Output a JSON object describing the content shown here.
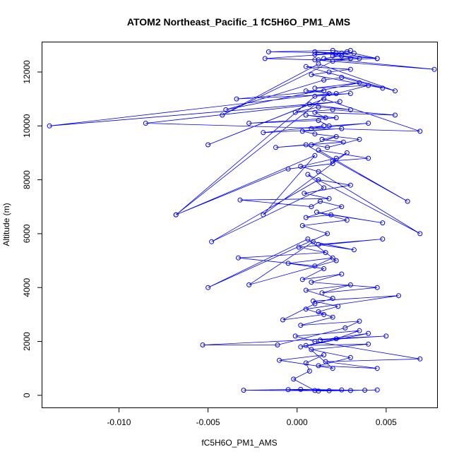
{
  "chart_data": {
    "type": "scatter",
    "title": "ATOM2 Northeast_Pacific_1 fC5H6O_PM1_AMS",
    "xlabel": "fC5H6O_PM1_AMS",
    "ylabel": "Altitude (m)",
    "xlim": [
      -0.0143,
      0.0079
    ],
    "ylim": [
      -450,
      13100
    ],
    "x_ticks": [
      {
        "value": -0.01,
        "label": "-0.010"
      },
      {
        "value": -0.005,
        "label": "-0.005"
      },
      {
        "value": 0.0,
        "label": "0.000"
      },
      {
        "value": 0.005,
        "label": "0.005"
      }
    ],
    "y_ticks": [
      {
        "value": 0,
        "label": "0"
      },
      {
        "value": 2000,
        "label": "2000"
      },
      {
        "value": 4000,
        "label": "4000"
      },
      {
        "value": 6000,
        "label": "6000"
      },
      {
        "value": 8000,
        "label": "8000"
      },
      {
        "value": 10000,
        "label": "10000"
      },
      {
        "value": 12000,
        "label": "12000"
      }
    ],
    "series_color": "#0000ff",
    "marker": "open-circle",
    "connected": true,
    "grid": false,
    "legend": "none",
    "series": [
      {
        "x": [
          0.0045,
          0.003,
          0.0012,
          -0.0005,
          0.0038,
          0.0018,
          -0.003,
          0.0002,
          0.0025,
          0.001,
          -0.0002,
          0.0007,
          0.0005,
          0.0015,
          -0.001,
          0.002,
          0.0005,
          0.004,
          0.0008,
          0.003,
          0.0012,
          0.0045,
          0.0016,
          0.0069,
          0.001,
          -0.0001,
          0.0035,
          0.0022,
          0.0002,
          0.004,
          0.0013,
          0.005,
          -0.0053,
          -0.0011,
          0.0027,
          0.0035,
          0.0002,
          0.002,
          0.0012,
          0.0023,
          0.0009,
          0.0057,
          0.0005,
          0.0015,
          -0.0008,
          0.001,
          0.002,
          0.0005,
          0.003,
          0.0014,
          0.0045,
          0.0008,
          0.0025,
          0.0003,
          0.0015,
          -0.0005,
          0.002,
          0.001,
          -0.0033,
          0.0016,
          0.0001,
          0.0048,
          0.0012,
          0.0032,
          0.0009,
          -0.0027,
          0.0022,
          0.0006,
          -0.005,
          0.0017,
          0.0003,
          0.0028,
          0.0011,
          0.0048,
          0.0019,
          0.0005,
          0.0025,
          0.0013,
          0.0008,
          -0.0032,
          0.0018,
          0.0004,
          0.003,
          0.0012,
          -0.0048,
          0.0015,
          0.0006,
          0.0069,
          0.0012,
          0.0002,
          0.0022,
          0.002,
          -0.0005,
          -0.0068,
          0.001,
          -0.0019,
          0.0028,
          0.002,
          0.004,
          0.0012,
          0.0062,
          0.0005,
          -0.0012,
          0.0026,
          0.0014,
          0.0022,
          0.0008,
          0.0017,
          0.0035,
          0.001,
          0.0003,
          0.0025,
          -0.0019,
          0.0015,
          0.0008,
          0.004,
          0.0018,
          0.0012,
          -0.0027,
          0.0022,
          0.0005,
          0.0016,
          0.001,
          0.0055,
          0.002,
          -0.0001,
          0.0012,
          0.003,
          0.0007,
          -0.005,
          0.0015,
          0.0069,
          -0.0085,
          0.0024,
          -0.0139,
          0.0018,
          -0.0068,
          0.001,
          0.003,
          -0.0034,
          0.0015,
          0.0005,
          0.0022,
          0.004,
          0.001,
          0.0035,
          -0.004,
          0.0015,
          0.0025,
          0.0048,
          0.0008,
          0.0018,
          0.003,
          0.0005,
          0.0055,
          0.0012,
          -0.0042,
          0.002,
          0.003,
          0.001,
          0.0077,
          0.0015,
          0.0025,
          0.0045,
          0.0022,
          0.001,
          0.0032,
          -0.0016,
          0.002,
          0.0028,
          0.0045,
          0.0012,
          -0.0018,
          0.0025,
          0.001,
          0.0035,
          0.002,
          0.003
        ],
        "y": [
          200,
          180,
          160,
          210,
          190,
          170,
          190,
          220,
          200,
          180,
          600,
          900,
          1200,
          1500,
          1300,
          1000,
          1850,
          1900,
          1700,
          1400,
          1100,
          1000,
          1250,
          1350,
          2000,
          2200,
          2400,
          2100,
          1800,
          2300,
          2050,
          2200,
          1870,
          1870,
          2500,
          2750,
          2600,
          2900,
          3100,
          3300,
          3500,
          3700,
          3200,
          3000,
          2800,
          3400,
          3600,
          3900,
          4100,
          3800,
          4000,
          4200,
          4500,
          4300,
          4700,
          4900,
          5100,
          4800,
          5100,
          5300,
          5500,
          5800,
          5600,
          5400,
          5700,
          4100,
          5000,
          5800,
          4000,
          6000,
          6300,
          6500,
          6800,
          6400,
          6700,
          6600,
          7000,
          7200,
          7000,
          7250,
          7300,
          7500,
          7800,
          8000,
          5700,
          7700,
          8200,
          6000,
          8300,
          8500,
          8800,
          8600,
          8400,
          6700,
          8900,
          6700,
          9000,
          8700,
          8800,
          9100,
          7200,
          9300,
          9200,
          9400,
          9500,
          9600,
          9300,
          9200,
          9500,
          9700,
          9800,
          9900,
          9750,
          10000,
          9900,
          10100,
          10000,
          10200,
          10100,
          10300,
          10400,
          10300,
          10500,
          10400,
          10600,
          10500,
          10700,
          10600,
          10800,
          9300,
          11000,
          9800,
          10100,
          10900,
          10000,
          11200,
          6700,
          11100,
          11200,
          11000,
          11300,
          11300,
          11200,
          11500,
          11400,
          11600,
          10600,
          11700,
          11800,
          11400,
          11900,
          12000,
          12100,
          12200,
          11300,
          12300,
          10400,
          12400,
          12500,
          12450,
          12100,
          12500,
          12600,
          12500,
          12700,
          12650,
          12700,
          12750,
          12800,
          12750,
          12500,
          12450,
          12500,
          12700,
          12750,
          12500,
          12600,
          12800
        ]
      }
    ]
  }
}
